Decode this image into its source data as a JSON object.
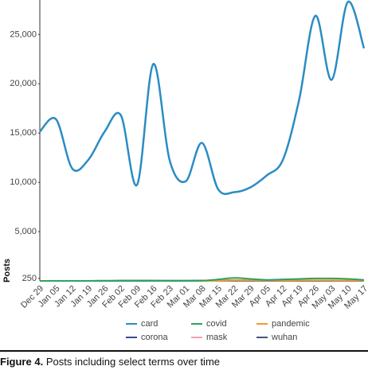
{
  "chart_data": {
    "type": "line",
    "y_label": "Posts",
    "categories": [
      "Dec 29",
      "Jan 05",
      "Jan 12",
      "Jan 19",
      "Jan 26",
      "Feb 02",
      "Feb 09",
      "Feb 16",
      "Feb 23",
      "Mar 01",
      "Mar 08",
      "Mar 15",
      "Mar 22",
      "Mar 29",
      "Apr 05",
      "Apr 12",
      "Apr 19",
      "Apr 26",
      "May 03",
      "May 10",
      "May 17"
    ],
    "series": [
      {
        "name": "card",
        "color": "#2b8cc4",
        "values": [
          15150,
          16400,
          11400,
          12300,
          15150,
          16800,
          9750,
          22000,
          12300,
          10100,
          14000,
          9300,
          9000,
          9500,
          10700,
          12300,
          18400,
          26900,
          20400,
          28300,
          23600
        ]
      },
      {
        "name": "covid",
        "color": "#2ca25f",
        "values": [
          0,
          0,
          0,
          0,
          0,
          0,
          0,
          0,
          0,
          0,
          20,
          150,
          300,
          200,
          100,
          150,
          200,
          250,
          250,
          200,
          100
        ]
      },
      {
        "name": "pandemic",
        "color": "#f59a23",
        "values": [
          0,
          0,
          0,
          0,
          0,
          0,
          0,
          0,
          0,
          0,
          0,
          50,
          80,
          60,
          50,
          50,
          60,
          60,
          60,
          50,
          40
        ]
      },
      {
        "name": "corona",
        "color": "#3b4a8c",
        "values": [
          0,
          0,
          0,
          0,
          10,
          20,
          20,
          20,
          20,
          20,
          30,
          60,
          60,
          40,
          30,
          30,
          30,
          30,
          30,
          30,
          20
        ]
      },
      {
        "name": "mask",
        "color": "#f4a0b0",
        "values": [
          0,
          0,
          0,
          0,
          0,
          0,
          0,
          0,
          0,
          0,
          0,
          20,
          50,
          40,
          30,
          30,
          30,
          30,
          30,
          30,
          20
        ]
      },
      {
        "name": "wuhan",
        "color": "#4a5578",
        "values": [
          0,
          0,
          0,
          0,
          10,
          20,
          20,
          20,
          10,
          10,
          10,
          10,
          10,
          10,
          10,
          10,
          10,
          10,
          10,
          10,
          10
        ]
      }
    ],
    "ylim": [
      0,
      28500
    ],
    "yticks": [
      250,
      {
        "value": 5000,
        "label": "5,000"
      },
      {
        "value": 10000,
        "label": "10,000"
      },
      {
        "value": 15000,
        "label": "15,000"
      },
      {
        "value": 20000,
        "label": "20,000"
      },
      {
        "value": 25000,
        "label": "25,000"
      }
    ],
    "figure_label": "Figure 4.",
    "caption": "Posts including select terms over time"
  }
}
